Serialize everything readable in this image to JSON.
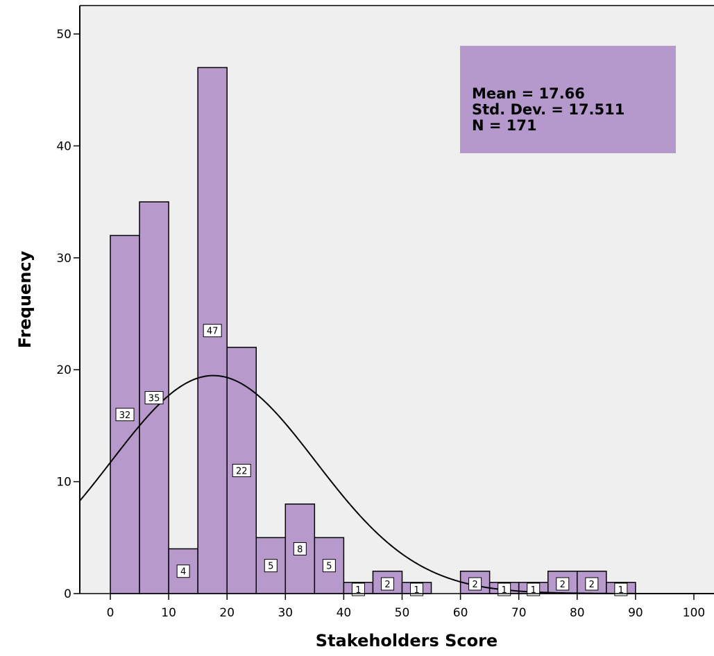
{
  "chart_data": {
    "type": "bar",
    "subtype": "histogram",
    "title": "",
    "xlabel": "Stakeholders Score",
    "ylabel": "Frequency",
    "xlim": [
      -5,
      102
    ],
    "ylim": [
      0,
      52
    ],
    "x_ticks": [
      0,
      10,
      20,
      30,
      40,
      50,
      60,
      70,
      80,
      90,
      100
    ],
    "y_ticks": [
      0,
      10,
      20,
      30,
      40,
      50
    ],
    "bin_width": 5,
    "bins": [
      {
        "start": 0,
        "value": 32
      },
      {
        "start": 5,
        "value": 35
      },
      {
        "start": 10,
        "value": 4
      },
      {
        "start": 15,
        "value": 47
      },
      {
        "start": 20,
        "value": 22
      },
      {
        "start": 25,
        "value": 5
      },
      {
        "start": 30,
        "value": 8
      },
      {
        "start": 35,
        "value": 5
      },
      {
        "start": 40,
        "value": 1
      },
      {
        "start": 45,
        "value": 2
      },
      {
        "start": 50,
        "value": 1
      },
      {
        "start": 55,
        "value": 0
      },
      {
        "start": 60,
        "value": 2
      },
      {
        "start": 65,
        "value": 1
      },
      {
        "start": 70,
        "value": 1
      },
      {
        "start": 75,
        "value": 2
      },
      {
        "start": 80,
        "value": 2
      },
      {
        "start": 85,
        "value": 1
      }
    ],
    "normal_curve": {
      "mean": 17.66,
      "sd": 17.511,
      "n": 171
    },
    "stats_box": {
      "lines": [
        "Mean = 17.66",
        "Std. Dev. = 17.511",
        "N = 171"
      ],
      "placement": "top-right"
    },
    "colors": {
      "bar_fill": "#b79acb",
      "bar_stroke": "#000000",
      "plot_background": "#efefef",
      "stats_box_fill": "#b598cc",
      "curve": "#000000"
    }
  }
}
